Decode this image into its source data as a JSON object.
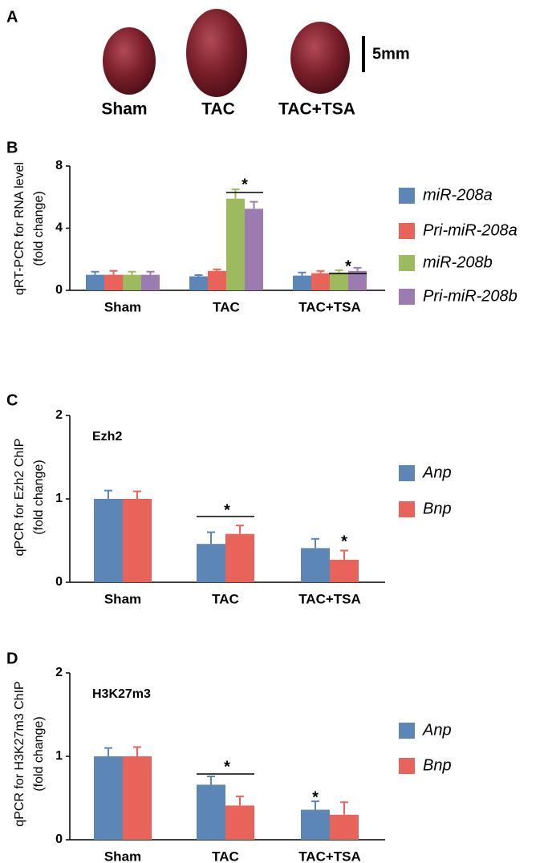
{
  "panel_a": {
    "panel": "A",
    "labels": [
      "Sham",
      "TAC",
      "TAC+TSA"
    ],
    "scale_label": "5mm"
  },
  "chart_data": [
    {
      "type": "bar",
      "panel": "B",
      "y_label": [
        "qRT-PCR for RNA level",
        "(fold change)"
      ],
      "categories": [
        "Sham",
        "TAC",
        "TAC+TSA"
      ],
      "series": [
        {
          "name": "miR-208a",
          "color": "#5b86b5",
          "values": [
            1.0,
            0.9,
            0.95
          ],
          "errors": [
            0.2,
            0.08,
            0.2
          ]
        },
        {
          "name": "Pri-miR-208a",
          "color": "#e8635a",
          "values": [
            1.0,
            1.25,
            1.1
          ],
          "errors": [
            0.25,
            0.1,
            0.15
          ]
        },
        {
          "name": "miR-208b",
          "color": "#9dbb5e",
          "values": [
            1.0,
            5.9,
            1.15
          ],
          "errors": [
            0.2,
            0.6,
            0.15
          ]
        },
        {
          "name": "Pri-miR-208b",
          "color": "#9b7bb0",
          "values": [
            1.0,
            5.25,
            1.25
          ],
          "errors": [
            0.2,
            0.45,
            0.2
          ]
        }
      ],
      "ylim": [
        0,
        8
      ],
      "yticks": [
        0,
        4,
        8
      ],
      "legend": "right",
      "annotations": [
        "*",
        "*"
      ]
    },
    {
      "type": "bar",
      "panel": "C",
      "title": "Ezh2",
      "y_label": [
        "qPCR for Ezh2 ChIP",
        "(fold change)"
      ],
      "categories": [
        "Sham",
        "TAC",
        "TAC+TSA"
      ],
      "series": [
        {
          "name": "Anp",
          "color": "#5b86b5",
          "values": [
            1.0,
            0.46,
            0.41
          ],
          "errors": [
            0.1,
            0.14,
            0.11
          ]
        },
        {
          "name": "Bnp",
          "color": "#e8635a",
          "values": [
            1.0,
            0.58,
            0.27
          ],
          "errors": [
            0.09,
            0.1,
            0.11
          ]
        }
      ],
      "ylim": [
        0,
        2
      ],
      "yticks": [
        0,
        1,
        2
      ],
      "legend": "right",
      "annotations": [
        "*",
        "*"
      ]
    },
    {
      "type": "bar",
      "panel": "D",
      "title": "H3K27m3",
      "y_label": [
        "qPCR for H3K27m3 ChIP",
        "(fold change)"
      ],
      "categories": [
        "Sham",
        "TAC",
        "TAC+TSA"
      ],
      "series": [
        {
          "name": "Anp",
          "color": "#5b86b5",
          "values": [
            1.0,
            0.66,
            0.36
          ],
          "errors": [
            0.1,
            0.1,
            0.1
          ]
        },
        {
          "name": "Bnp",
          "color": "#e8635a",
          "values": [
            1.0,
            0.41,
            0.3
          ],
          "errors": [
            0.11,
            0.11,
            0.15
          ]
        }
      ],
      "ylim": [
        0,
        2
      ],
      "yticks": [
        0,
        1,
        2
      ],
      "legend": "right",
      "annotations": [
        "*",
        "*"
      ]
    }
  ]
}
